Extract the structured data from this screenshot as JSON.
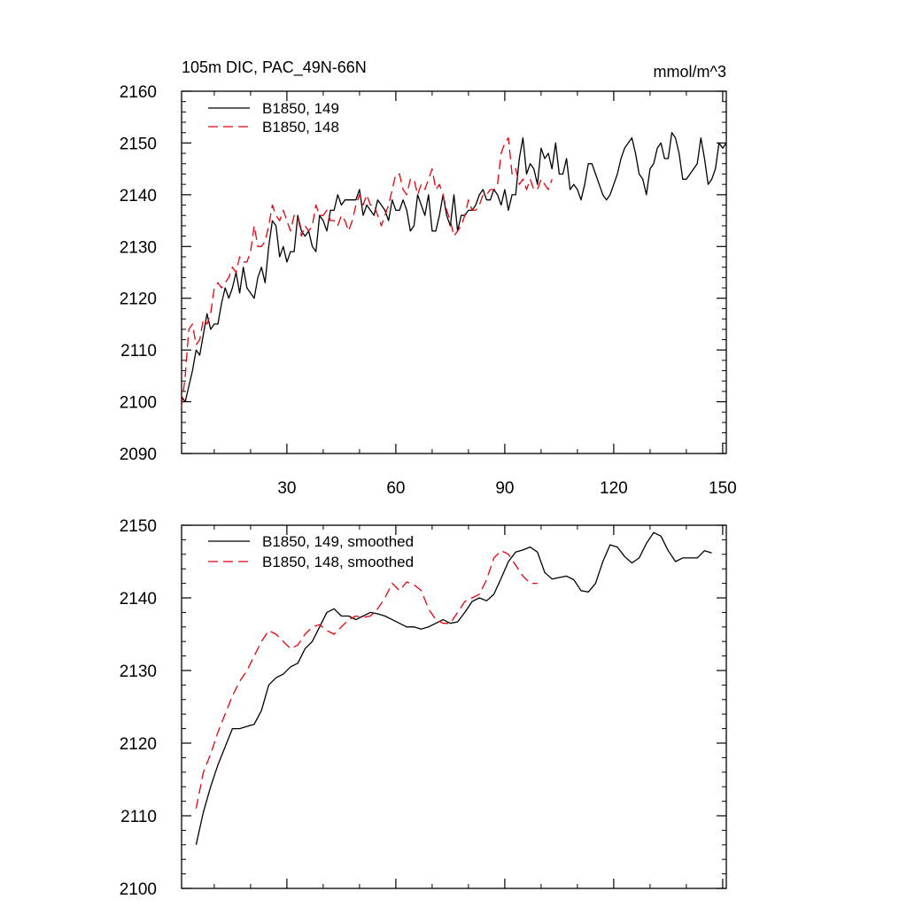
{
  "colors": {
    "series_149": "#000000",
    "series_148": "#e8000b",
    "axes": "#000000",
    "background": "#ffffff"
  },
  "chart_data": [
    {
      "type": "line",
      "title": "105m DIC, PAC_49N-66N",
      "units": "mmol/m^3",
      "xlabel": "",
      "ylabel": "",
      "xlim": [
        1,
        151
      ],
      "ylim": [
        2090,
        2160
      ],
      "xticks": [
        30,
        60,
        90,
        120,
        150
      ],
      "yticks": [
        2090,
        2100,
        2110,
        2120,
        2130,
        2140,
        2150,
        2160
      ],
      "legend_position": "top-left",
      "series": [
        {
          "name": "B1850, 149",
          "style": "solid",
          "color": "#000000",
          "x_start": 1,
          "values": [
            2101,
            2100,
            2103,
            2106,
            2110,
            2109,
            2113,
            2117,
            2114,
            2115,
            2115,
            2119,
            2122,
            2120,
            2122,
            2125,
            2121,
            2126,
            2122,
            2121,
            2120,
            2124,
            2126,
            2123,
            2130,
            2135,
            2134,
            2128,
            2130,
            2127,
            2129,
            2129,
            2136,
            2133,
            2132,
            2133,
            2130,
            2129,
            2136,
            2135,
            2133,
            2137,
            2137,
            2140,
            2138,
            2139,
            2139,
            2139,
            2139,
            2141,
            2136,
            2138,
            2137,
            2136,
            2139,
            2138,
            2137,
            2135,
            2139,
            2137,
            2137,
            2139,
            2137,
            2133,
            2134,
            2140,
            2138,
            2136,
            2140,
            2133,
            2133,
            2136,
            2140,
            2136,
            2134,
            2140,
            2133,
            2136,
            2136,
            2137,
            2137,
            2138,
            2140,
            2141,
            2139,
            2139,
            2141,
            2140,
            2138,
            2141,
            2137,
            2140,
            2140,
            2147,
            2151,
            2144,
            2146,
            2145,
            2142,
            2149,
            2147,
            2148,
            2145,
            2150,
            2144,
            2144,
            2147,
            2141,
            2142,
            2141,
            2139,
            2142,
            2146,
            2146,
            2144,
            2142,
            2140,
            2139,
            2140,
            2142,
            2144,
            2147,
            2149,
            2150,
            2151,
            2148,
            2144,
            2143,
            2140,
            2145,
            2146,
            2149,
            2150,
            2147,
            2147,
            2152,
            2151,
            2148,
            2143,
            2143,
            2144,
            2145,
            2146,
            2151,
            2147,
            2142,
            2143,
            2145,
            2150,
            2149,
            2150
          ]
        },
        {
          "name": "B1850, 148",
          "style": "dashed",
          "color": "#e8000b",
          "x_start": 1,
          "values": [
            2099,
            2105,
            2114,
            2115,
            2111,
            2112,
            2116,
            2115,
            2117,
            2122,
            2123,
            2122,
            2123,
            2124,
            2126,
            2125,
            2128,
            2127,
            2127,
            2129,
            2134,
            2130,
            2130,
            2131,
            2134,
            2138,
            2136,
            2135,
            2137,
            2135,
            2133,
            2136,
            2136,
            2132,
            2134,
            2133,
            2134,
            2138,
            2136,
            2136,
            2137,
            2135,
            2135,
            2134,
            2136,
            2135,
            2133,
            2135,
            2138,
            2140,
            2138,
            2140,
            2138,
            2138,
            2136,
            2134,
            2136,
            2138,
            2141,
            2144,
            2144,
            2141,
            2140,
            2143,
            2143,
            2140,
            2142,
            2141,
            2143,
            2145,
            2141,
            2142,
            2140,
            2137,
            2135,
            2132,
            2133,
            2134,
            2136,
            2139,
            2137,
            2137,
            2138,
            2140,
            2140,
            2141,
            2141,
            2142,
            2148,
            2150,
            2151,
            2144,
            2145,
            2142,
            2143,
            2141,
            2143,
            2141,
            2141,
            2143,
            2142,
            2141,
            2143
          ]
        }
      ]
    },
    {
      "type": "line",
      "title": "",
      "xlabel": "",
      "ylabel": "",
      "xlim": [
        1,
        151
      ],
      "ylim": [
        2100,
        2150
      ],
      "yticks": [
        2100,
        2110,
        2120,
        2130,
        2140,
        2150
      ],
      "legend_position": "top-left",
      "series": [
        {
          "name": "B1850, 149, smoothed",
          "style": "solid",
          "color": "#000000",
          "x": [
            5,
            7,
            9,
            11,
            13,
            15,
            17,
            19,
            21,
            23,
            25,
            27,
            29,
            31,
            33,
            35,
            37,
            39,
            41,
            43,
            45,
            47,
            49,
            51,
            53,
            55,
            57,
            59,
            61,
            63,
            65,
            67,
            69,
            71,
            73,
            75,
            77,
            79,
            81,
            83,
            85,
            87,
            89,
            91,
            93,
            95,
            97,
            99,
            101,
            103,
            105,
            107,
            109,
            111,
            113,
            115,
            117,
            119,
            121,
            123,
            125,
            127,
            129,
            131,
            133,
            135,
            137,
            139,
            141,
            143,
            145,
            147
          ],
          "values": [
            2106,
            2110.5,
            2114,
            2117,
            2119.5,
            2122,
            2122,
            2122.3,
            2122.6,
            2124.5,
            2128,
            2129,
            2129.5,
            2130.5,
            2131,
            2133,
            2134,
            2136,
            2138,
            2138.5,
            2137.5,
            2137.5,
            2137,
            2137.5,
            2138,
            2137.8,
            2137.5,
            2137,
            2136.5,
            2136,
            2136,
            2135.7,
            2136,
            2136.5,
            2137,
            2136.5,
            2136.7,
            2138,
            2139.5,
            2140,
            2139.6,
            2140.5,
            2142.7,
            2145,
            2146.3,
            2146.6,
            2147,
            2146.3,
            2143.5,
            2142.6,
            2142.8,
            2143,
            2142.5,
            2141,
            2140.8,
            2142,
            2145,
            2147.3,
            2147,
            2145.7,
            2144.8,
            2145.5,
            2147.5,
            2149,
            2148.5,
            2146.5,
            2145,
            2145.5,
            2145.5,
            2145.5,
            2146.5,
            2146.2
          ]
        },
        {
          "name": "B1850, 148, smoothed",
          "style": "dashed",
          "color": "#e8000b",
          "x": [
            5,
            7,
            9,
            11,
            13,
            15,
            17,
            19,
            21,
            23,
            25,
            27,
            29,
            31,
            33,
            35,
            37,
            39,
            41,
            43,
            45,
            47,
            49,
            51,
            53,
            55,
            57,
            59,
            61,
            63,
            65,
            67,
            69,
            71,
            73,
            75,
            77,
            79,
            81,
            83,
            85,
            87,
            89,
            91,
            93,
            95,
            97,
            99
          ],
          "values": [
            2111,
            2116,
            2118.5,
            2121.5,
            2124,
            2126.5,
            2128.5,
            2130,
            2132,
            2134,
            2135.5,
            2135,
            2134,
            2133,
            2133.5,
            2135,
            2136,
            2136.3,
            2135.5,
            2135,
            2136,
            2137,
            2137.5,
            2137.3,
            2137.5,
            2138.5,
            2140,
            2142,
            2141,
            2142.2,
            2141.8,
            2141,
            2138.5,
            2137,
            2136.5,
            2136.5,
            2138,
            2139.5,
            2140,
            2140.5,
            2142.5,
            2145.5,
            2146.5,
            2146,
            2144.5,
            2143,
            2142,
            2142
          ]
        }
      ]
    }
  ]
}
